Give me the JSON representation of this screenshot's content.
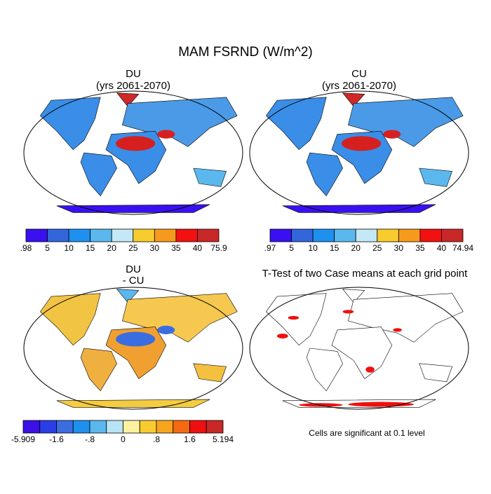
{
  "title": "MAM FSRND (W/m^2)",
  "panels": [
    {
      "title": "DU",
      "subtitle": "(yrs 2061-2070)"
    },
    {
      "title": "CU",
      "subtitle": "(yrs 2061-2070)"
    },
    {
      "title": "DU",
      "subtitle": "- CU"
    },
    {
      "title": "T-Test of two Case means at each grid point"
    }
  ],
  "colorbars": [
    {
      "colors": [
        "#3a10f0",
        "#3366dd",
        "#1e90f0",
        "#5ab8ee",
        "#c4e8f6",
        "#f8cc2e",
        "#f79a1c",
        "#f21010",
        "#c82828"
      ],
      "labels": [
        ".98",
        "5",
        "10",
        "15",
        "20",
        "25",
        "30",
        "35",
        "40",
        "75.9"
      ]
    },
    {
      "colors": [
        "#3a10f0",
        "#3366dd",
        "#1e90f0",
        "#5ab8ee",
        "#c4e8f6",
        "#f8cc2e",
        "#f79a1c",
        "#f21010",
        "#c82828"
      ],
      "labels": [
        ".97",
        "5",
        "10",
        "15",
        "20",
        "25",
        "30",
        "35",
        "40",
        "74.94"
      ]
    },
    {
      "colors": [
        "#3b10e8",
        "#2a3ee8",
        "#3a6ee0",
        "#1e90f0",
        "#5ab8ee",
        "#b8e4f5",
        "#fdf0a0",
        "#f8cc2e",
        "#f7a51c",
        "#f56a10",
        "#ee1010",
        "#c82828"
      ],
      "labels": [
        "-5.909",
        "-1.6",
        "-.8",
        "0",
        ".8",
        "1.6",
        "5.194"
      ]
    }
  ],
  "note": "Cells are significant at 0.1 level"
}
